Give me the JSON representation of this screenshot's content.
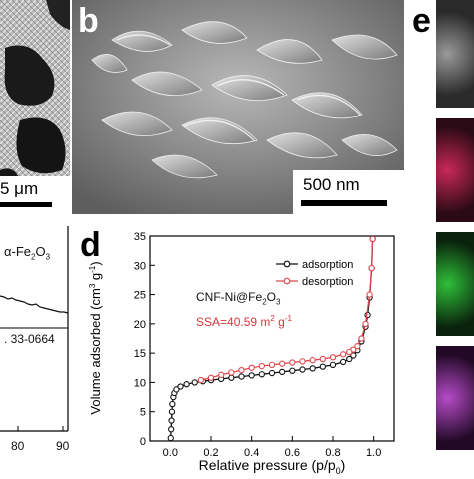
{
  "panels": {
    "a": {
      "scale_label": "5 μm"
    },
    "b": {
      "letter": "b",
      "scale_label": "500 nm"
    },
    "c": {
      "phase_label": "α-Fe",
      "phase_sub1": "2",
      "phase_o": "O",
      "phase_sub2": "3",
      "pdf_card": ". 33-0664",
      "x_ticks": [
        "80",
        "90"
      ]
    },
    "d": {
      "letter": "d",
      "sample_label": "CNF-Ni@Fe",
      "sample_sub1": "2",
      "sample_o": "O",
      "sample_sub2": "3",
      "ssa_text": "SSA=40.59 m",
      "ssa_sup": "2",
      "ssa_unit": " g",
      "ssa_sup2": "-1"
    },
    "e": {
      "letter": "e"
    }
  },
  "colors": {
    "adsorption": "#111111",
    "desorption": "#e0474c",
    "ssa_text": "#d9363c",
    "map_red": "#c8285a",
    "map_green": "#2fbf3a",
    "map_purple": "#b64bc8"
  },
  "chart_data": {
    "type": "line",
    "xlabel": "Relative pressure (p/p0)",
    "ylabel": "Volume adsorbed (cm3 g-1)",
    "xlim": [
      -0.1,
      1.1
    ],
    "ylim": [
      0,
      35
    ],
    "x_ticks": [
      "0.0",
      "0.2",
      "0.4",
      "0.6",
      "0.8",
      "1.0"
    ],
    "y_ticks": [
      "0",
      "5",
      "10",
      "15",
      "20",
      "25",
      "30",
      "35"
    ],
    "legend_position": "top-right",
    "series": [
      {
        "name": "adsorption",
        "marker": "circle",
        "x": [
          0.002,
          0.004,
          0.006,
          0.008,
          0.01,
          0.015,
          0.02,
          0.03,
          0.05,
          0.08,
          0.12,
          0.16,
          0.2,
          0.25,
          0.3,
          0.35,
          0.4,
          0.45,
          0.5,
          0.55,
          0.6,
          0.65,
          0.7,
          0.75,
          0.8,
          0.85,
          0.88,
          0.9,
          0.92,
          0.94,
          0.96,
          0.97,
          0.98,
          0.99,
          0.995
        ],
        "y": [
          0.5,
          2.0,
          3.5,
          5.0,
          6.3,
          7.5,
          8.2,
          8.8,
          9.3,
          9.7,
          10.0,
          10.2,
          10.4,
          10.6,
          10.8,
          11.0,
          11.2,
          11.4,
          11.6,
          11.8,
          12.0,
          12.2,
          12.4,
          12.7,
          13.0,
          13.5,
          14.0,
          14.6,
          15.5,
          17.0,
          19.5,
          21.5,
          24.5,
          29.5,
          34.5
        ]
      },
      {
        "name": "desorption",
        "marker": "circle",
        "x": [
          0.995,
          0.99,
          0.98,
          0.96,
          0.94,
          0.92,
          0.9,
          0.88,
          0.85,
          0.8,
          0.75,
          0.7,
          0.65,
          0.6,
          0.55,
          0.5,
          0.45,
          0.4,
          0.35,
          0.3,
          0.25,
          0.2,
          0.15
        ],
        "y": [
          34.5,
          29.5,
          25.0,
          20.0,
          17.5,
          16.2,
          15.6,
          15.2,
          14.8,
          14.3,
          14.0,
          13.8,
          13.6,
          13.4,
          13.2,
          13.0,
          12.8,
          12.5,
          12.1,
          11.7,
          11.3,
          10.8,
          10.4
        ]
      }
    ]
  }
}
